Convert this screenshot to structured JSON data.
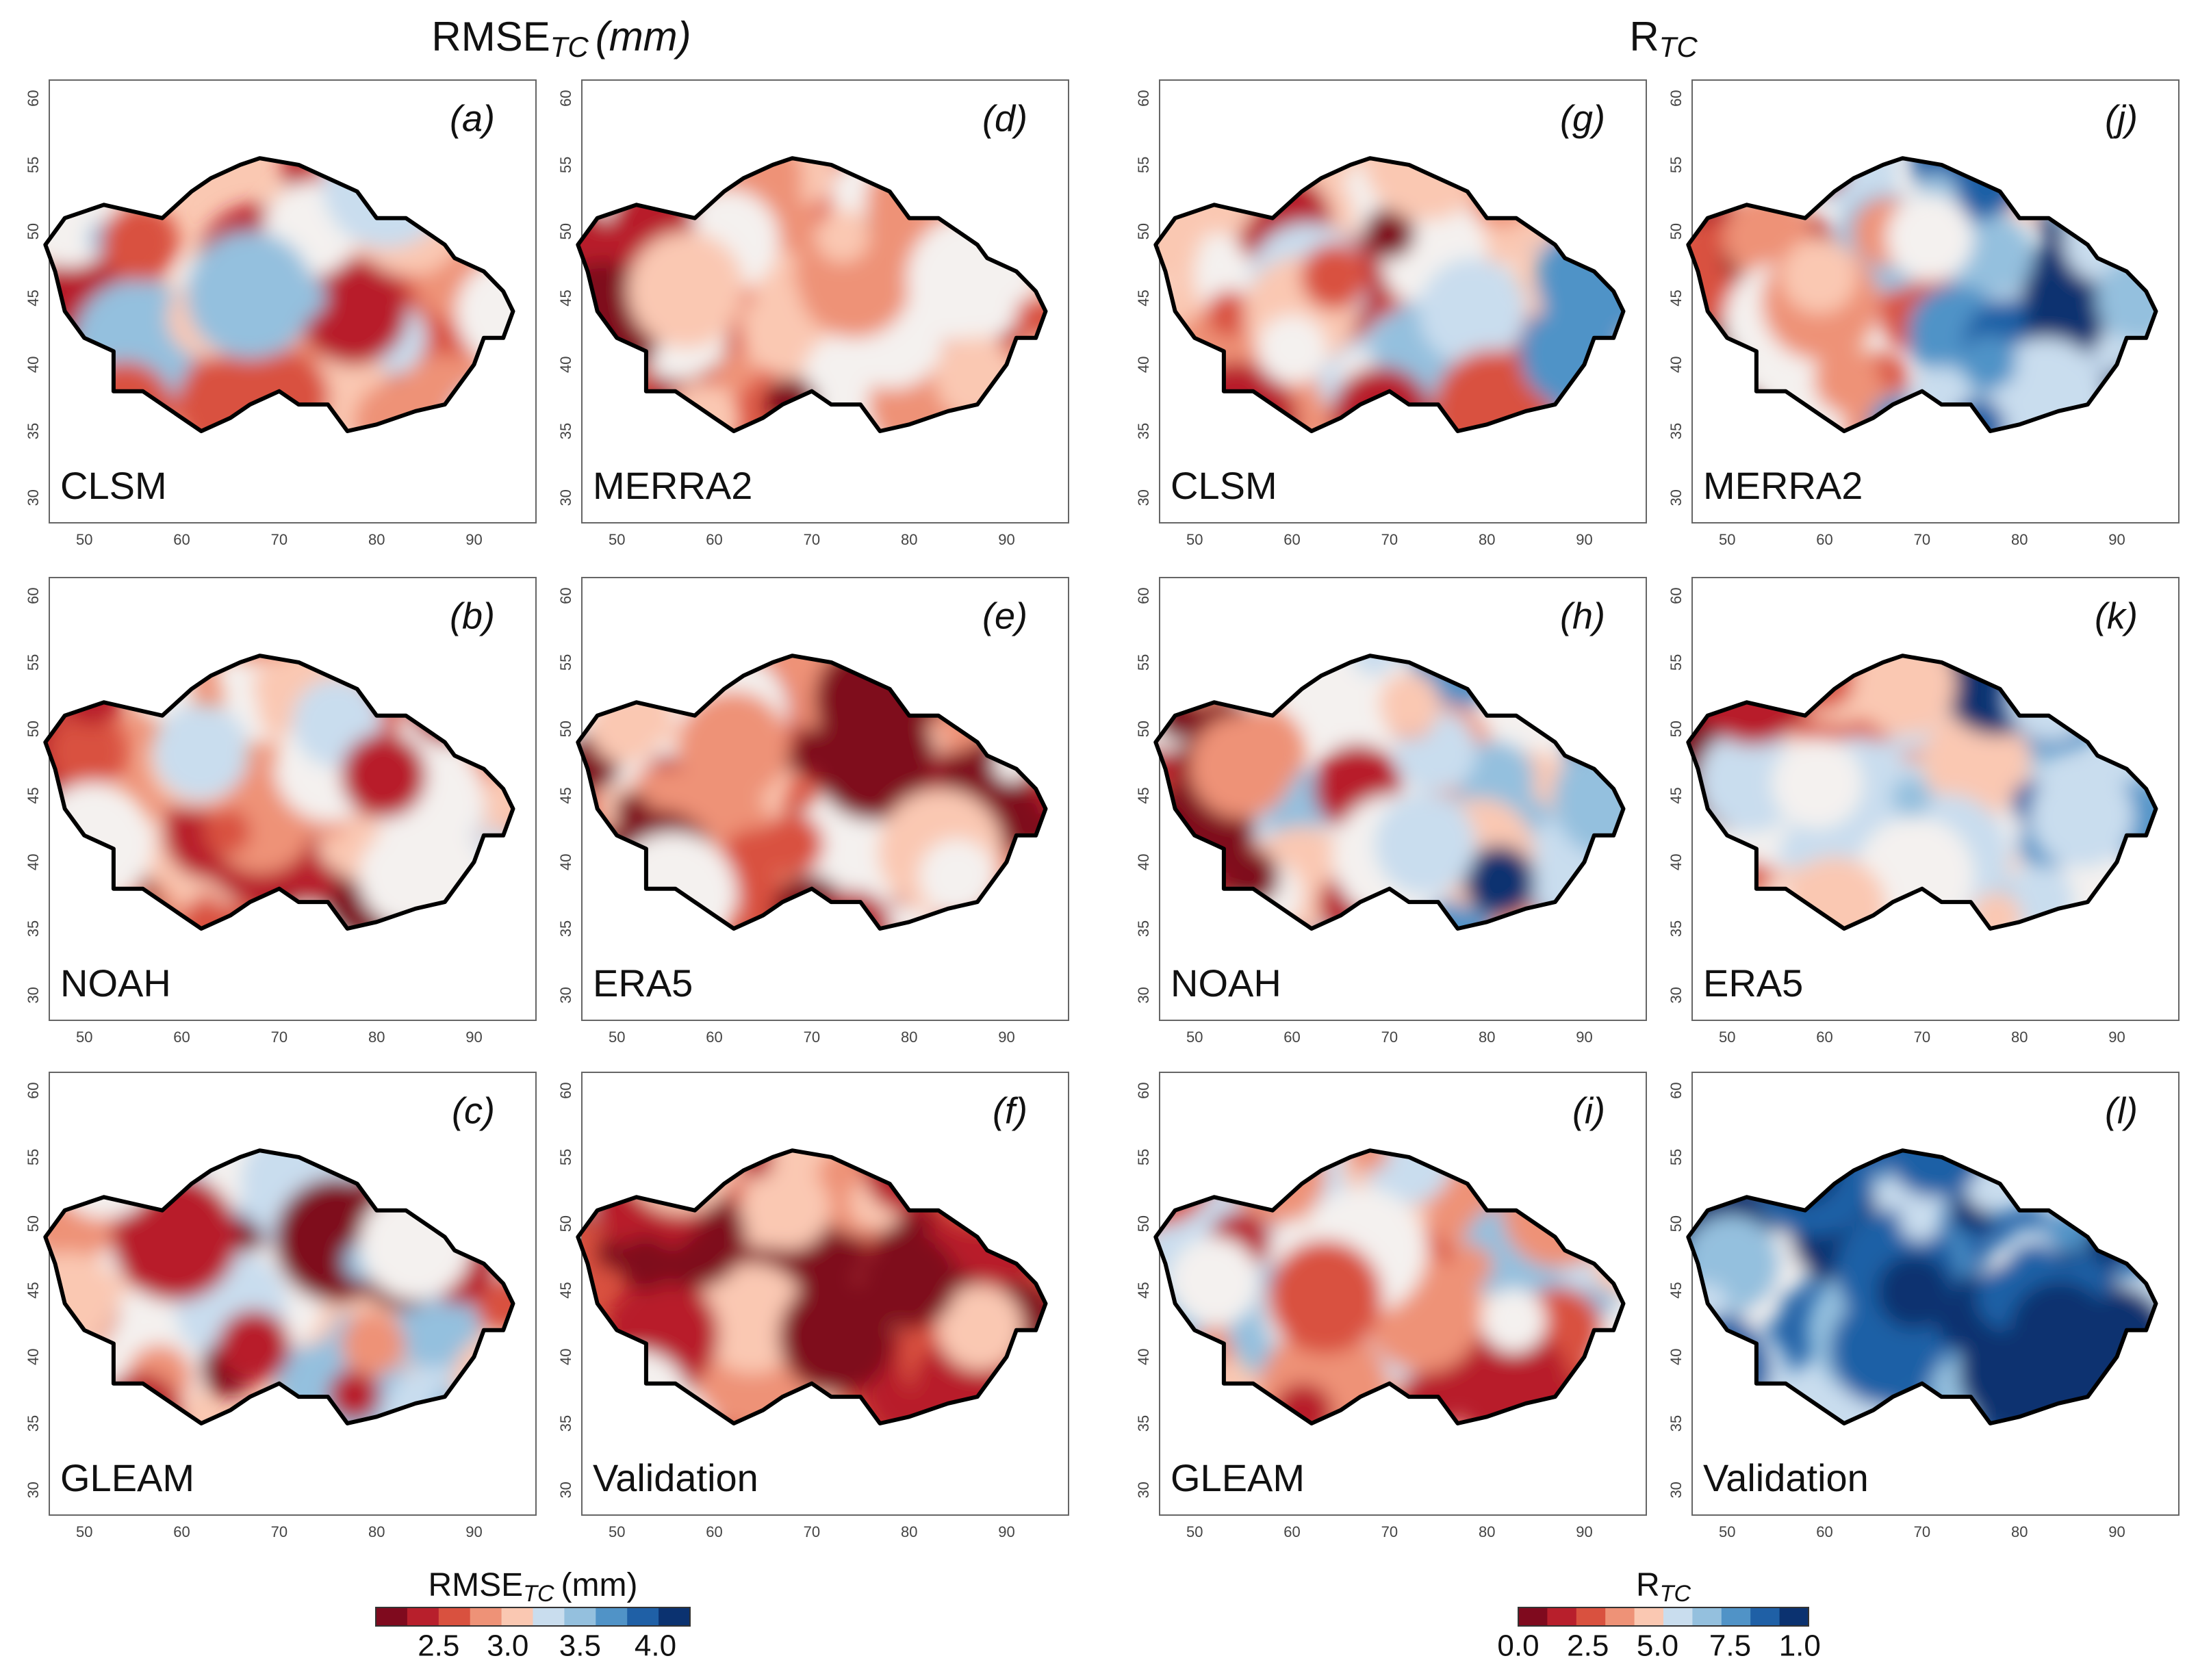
{
  "header_left": {
    "main": "RMSE",
    "sub": "TC",
    "unit": "(mm)"
  },
  "header_right": {
    "main": "R",
    "sub": "TC"
  },
  "panels": [
    {
      "tag": "(a)",
      "model": "CLSM"
    },
    {
      "tag": "(b)",
      "model": "NOAH"
    },
    {
      "tag": "(c)",
      "model": "GLEAM"
    },
    {
      "tag": "(d)",
      "model": "MERRA2"
    },
    {
      "tag": "(e)",
      "model": "ERA5"
    },
    {
      "tag": "(f)",
      "model": "Validation"
    },
    {
      "tag": "(g)",
      "model": "CLSM"
    },
    {
      "tag": "(h)",
      "model": "NOAH"
    },
    {
      "tag": "(i)",
      "model": "GLEAM"
    },
    {
      "tag": "(j)",
      "model": "MERRA2"
    },
    {
      "tag": "(k)",
      "model": "ERA5"
    },
    {
      "tag": "(l)",
      "model": "Validation"
    }
  ],
  "axes": {
    "x_ticks": [
      50,
      60,
      70,
      80,
      90
    ],
    "y_ticks": [
      30,
      35,
      40,
      45,
      50,
      55,
      60
    ]
  },
  "colorbars": [
    {
      "title": {
        "main": "RMSE",
        "sub": "TC",
        "unit": "(mm)"
      },
      "ticks": [
        "2.5",
        "3.0",
        "3.5",
        "4.0"
      ]
    },
    {
      "title": {
        "main": "R",
        "sub": "TC"
      },
      "ticks": [
        "0.0",
        "2.5",
        "5.0",
        "7.5",
        "1.0"
      ]
    }
  ]
}
